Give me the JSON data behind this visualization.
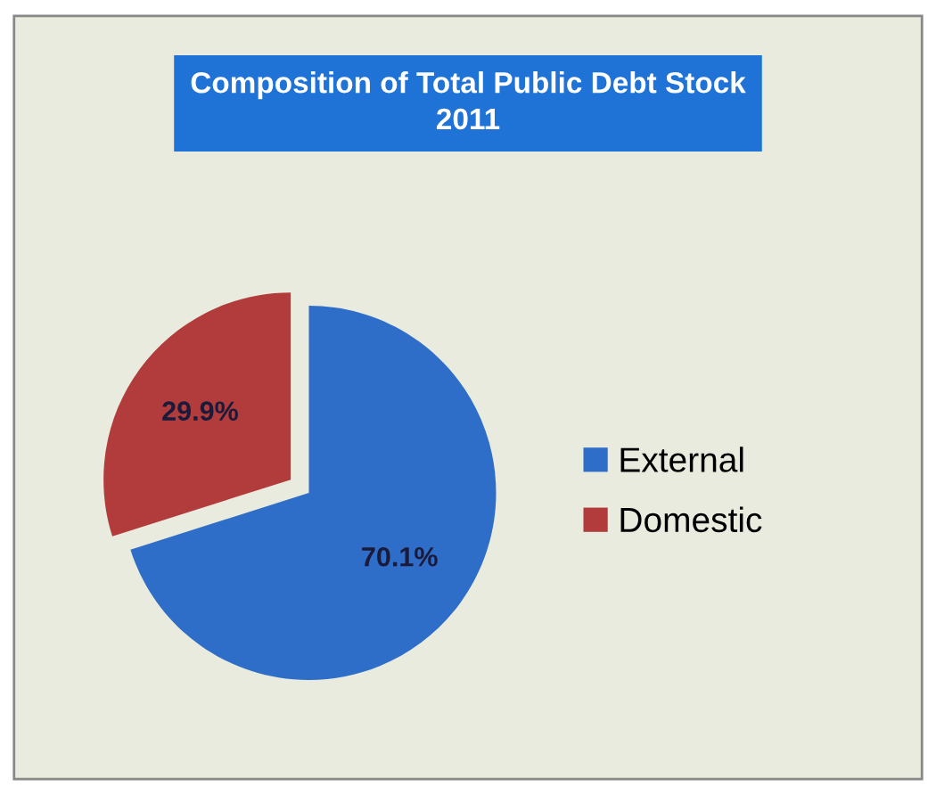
{
  "chart_data": {
    "type": "pie",
    "title": "Composition of Total Public Debt Stock\n2011",
    "categories": [
      "External",
      "Domestic"
    ],
    "values": [
      70.1,
      29.9
    ],
    "colors": [
      "#2f6ec8",
      "#b23b3b"
    ],
    "value_labels": [
      "70.1%",
      "29.9%"
    ],
    "legend": "right"
  }
}
